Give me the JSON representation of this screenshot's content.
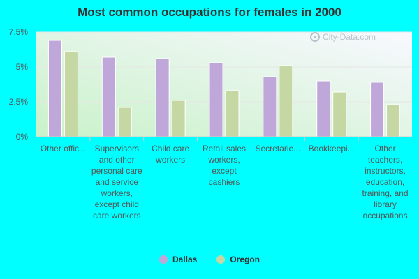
{
  "chart_data": {
    "type": "bar",
    "title": "Most common occupations for females in 2000",
    "categories": [
      "Other offic...",
      "Supervisors and other personal care and service workers, except child care workers",
      "Child care workers",
      "Retail sales workers, except cashiers",
      "Secretarie...",
      "Bookkeepi...",
      "Other teachers, instructors, education, training, and library occupations"
    ],
    "series": [
      {
        "name": "Dallas",
        "color": "#bfa7d9",
        "values": [
          6.9,
          5.7,
          5.6,
          5.3,
          4.3,
          4.0,
          3.9
        ]
      },
      {
        "name": "Oregon",
        "color": "#c5d8a4",
        "values": [
          6.1,
          2.1,
          2.6,
          3.3,
          5.1,
          3.2,
          2.3
        ]
      }
    ],
    "ylim": [
      0,
      7.5
    ],
    "yticks": [
      0,
      2.5,
      5,
      7.5
    ],
    "ytick_labels": [
      "0%",
      "2.5%",
      "5%",
      "7.5%"
    ],
    "xlabel": "",
    "ylabel": "",
    "legend_position": "bottom",
    "grid": true,
    "watermark": "City-Data.com"
  }
}
